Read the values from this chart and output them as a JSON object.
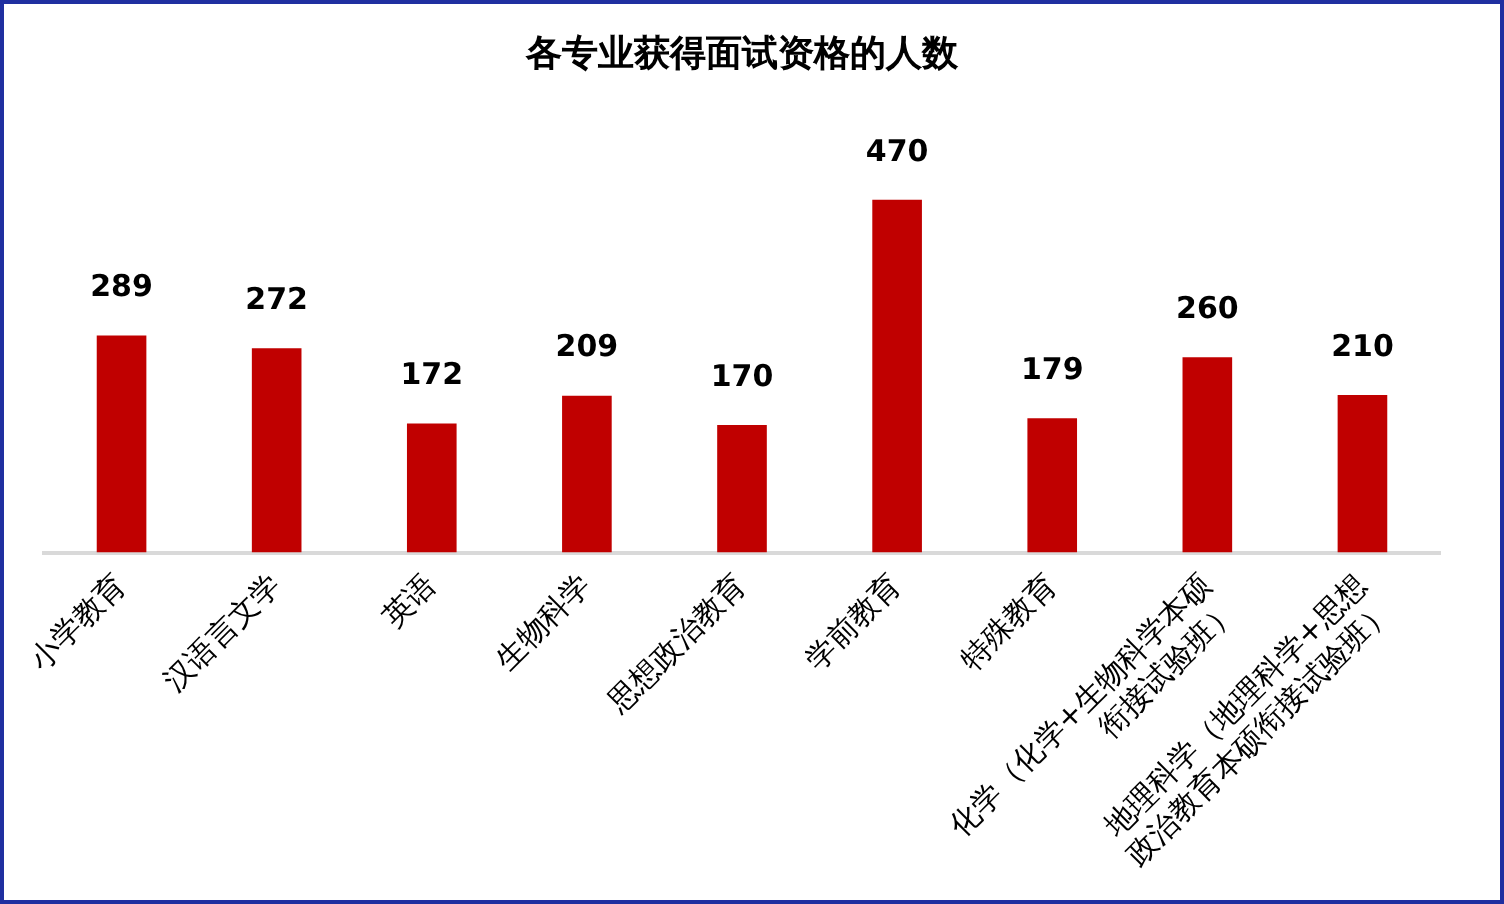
{
  "chart_data": {
    "type": "bar",
    "title": "各专业获得面试资格的人数",
    "categories": [
      "小学教育",
      "汉语言文学",
      "英语",
      "生物科学",
      "思想政治教育",
      "学前教育",
      "特殊教育",
      "化学（化学+生物科学本硕衔接试验班）",
      "地理科学（地理科学+思想政治教育本硕衔接试验班）"
    ],
    "values": [
      289,
      272,
      172,
      209,
      170,
      470,
      179,
      260,
      210
    ],
    "color": "#c00000",
    "data_labels": true,
    "grid": false,
    "legend": false
  }
}
